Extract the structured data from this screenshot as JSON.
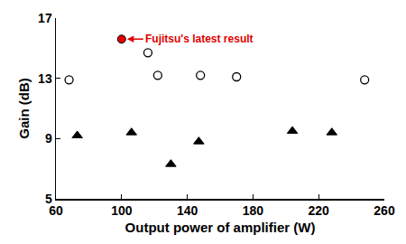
{
  "chart_data": {
    "type": "scatter",
    "x_label": "Output power of amplifier (W)",
    "y_label": "Gain (dB)",
    "xlim": [
      60,
      260
    ],
    "xticks": [
      60,
      100,
      140,
      180,
      220,
      260
    ],
    "ylim": [
      5,
      17
    ],
    "yticks": [
      5,
      9,
      13,
      17
    ],
    "grid": false,
    "series": [
      {
        "color": "#000000",
        "marker": "circle-open",
        "x": [
          68,
          116,
          122,
          148,
          170,
          248
        ],
        "values": [
          12.9,
          14.7,
          13.2,
          13.2,
          13.1,
          12.9
        ]
      },
      {
        "color": "#000000",
        "marker": "triangle-up",
        "x": [
          73,
          106,
          130,
          147,
          204,
          228
        ],
        "values": [
          9.2,
          9.4,
          7.3,
          8.8,
          9.5,
          9.4
        ]
      },
      {
        "color": "#e00000",
        "marker": "circle",
        "x": [
          100
        ],
        "values": [
          15.6
        ]
      }
    ],
    "annotations": [
      {
        "text": "Fujitsu's latest result",
        "x": 100,
        "y": 15.6,
        "color": "#e00000"
      }
    ]
  }
}
